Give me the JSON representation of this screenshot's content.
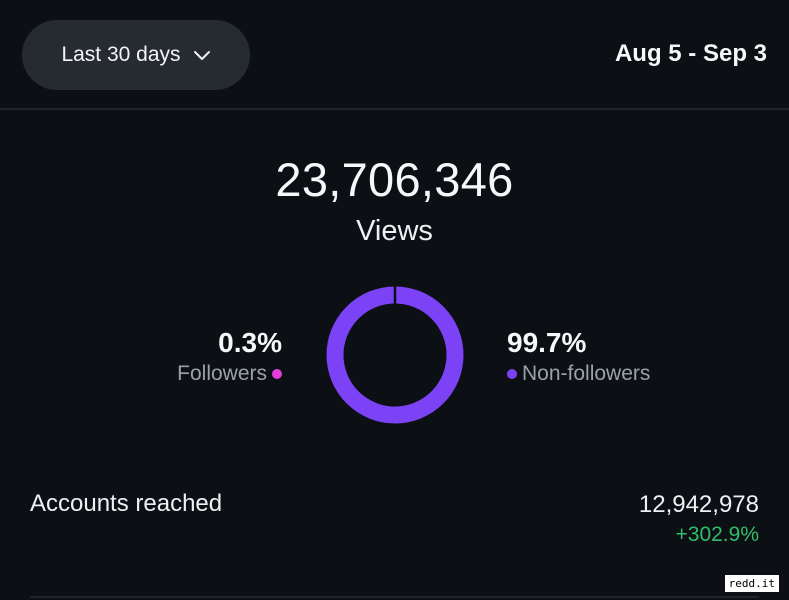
{
  "filter": {
    "range_label": "Last 30 days",
    "date_range": "Aug 5 - Sep 3"
  },
  "views": {
    "total": "23,706,346",
    "label": "Views"
  },
  "audience": {
    "followers_pct": "0.3%",
    "followers_label": "Followers",
    "followers_share": 0.003,
    "non_followers_pct": "99.7%",
    "non_followers_label": "Non-followers",
    "non_followers_share": 0.997,
    "colors": {
      "followers": "#e23ed8",
      "non_followers": "#7c42f5",
      "gap": "#0c0f14"
    }
  },
  "accounts_reached": {
    "label": "Accounts reached",
    "value": "12,942,978",
    "change": "+302.9%"
  },
  "watermark": "redd.it"
}
